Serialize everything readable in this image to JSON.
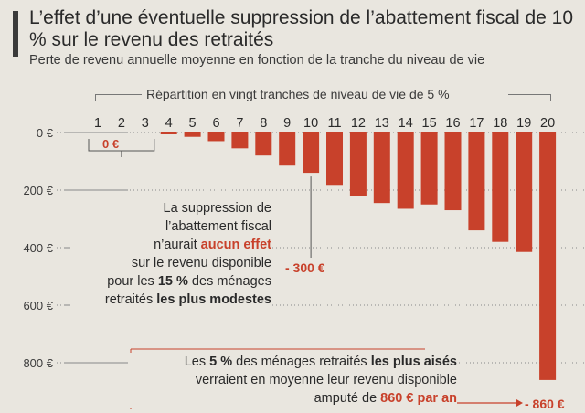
{
  "title": "L’effet d’une éventuelle suppression de l’abattement fiscal de 10 % sur le revenu des retraités",
  "subtitle": "Perte de revenu annuelle moyenne en fonction de la tranche du niveau de vie",
  "repartition_label": "Répartition en vingt tranches de niveau de vie de 5 %",
  "colors": {
    "bar": "#c8412b",
    "accent": "#c8412b",
    "text": "#2a2a2a"
  },
  "annotation_zero": "0 €",
  "annotation_300": "- 300 €",
  "annotation_860": "- 860 €",
  "annotation1": {
    "l1": "La suppression de",
    "l2": "l’abattement fiscal",
    "l3a": "n’aurait ",
    "l3b": "aucun effet",
    "l4": "sur le revenu disponible",
    "l5a": "pour les ",
    "l5b": "15 %",
    "l5c": " des ménages",
    "l6a": "retraités ",
    "l6b": "les plus modestes"
  },
  "annotation2": {
    "l1a": "Les ",
    "l1b": "5 %",
    "l1c": " des ménages retraités ",
    "l1d": "les plus aisés",
    "l2": "verraient en moyenne leur revenu disponible",
    "l3a": "amputé de ",
    "l3b": "860 € par an"
  },
  "chart_data": {
    "type": "bar",
    "title": "L’effet d’une éventuelle suppression de l’abattement fiscal de 10 % sur le revenu des retraités",
    "subtitle": "Perte de revenu annuelle moyenne en fonction de la tranche du niveau de vie",
    "xlabel": "Répartition en vingt tranches de niveau de vie de 5 %",
    "ylabel": "",
    "categories": [
      "1",
      "2",
      "3",
      "4",
      "5",
      "6",
      "7",
      "8",
      "9",
      "10",
      "11",
      "12",
      "13",
      "14",
      "15",
      "16",
      "17",
      "18",
      "19",
      "20"
    ],
    "values": [
      0,
      0,
      0,
      -5,
      -15,
      -30,
      -55,
      -80,
      -115,
      -140,
      -185,
      -220,
      -245,
      -265,
      -250,
      -270,
      -340,
      -380,
      -415,
      -860
    ],
    "y_ticks": [
      "0 €",
      "200 €",
      "400 €",
      "600 €",
      "800 €"
    ],
    "ylim": [
      -860,
      0
    ],
    "grid": "dotted horizontal"
  }
}
